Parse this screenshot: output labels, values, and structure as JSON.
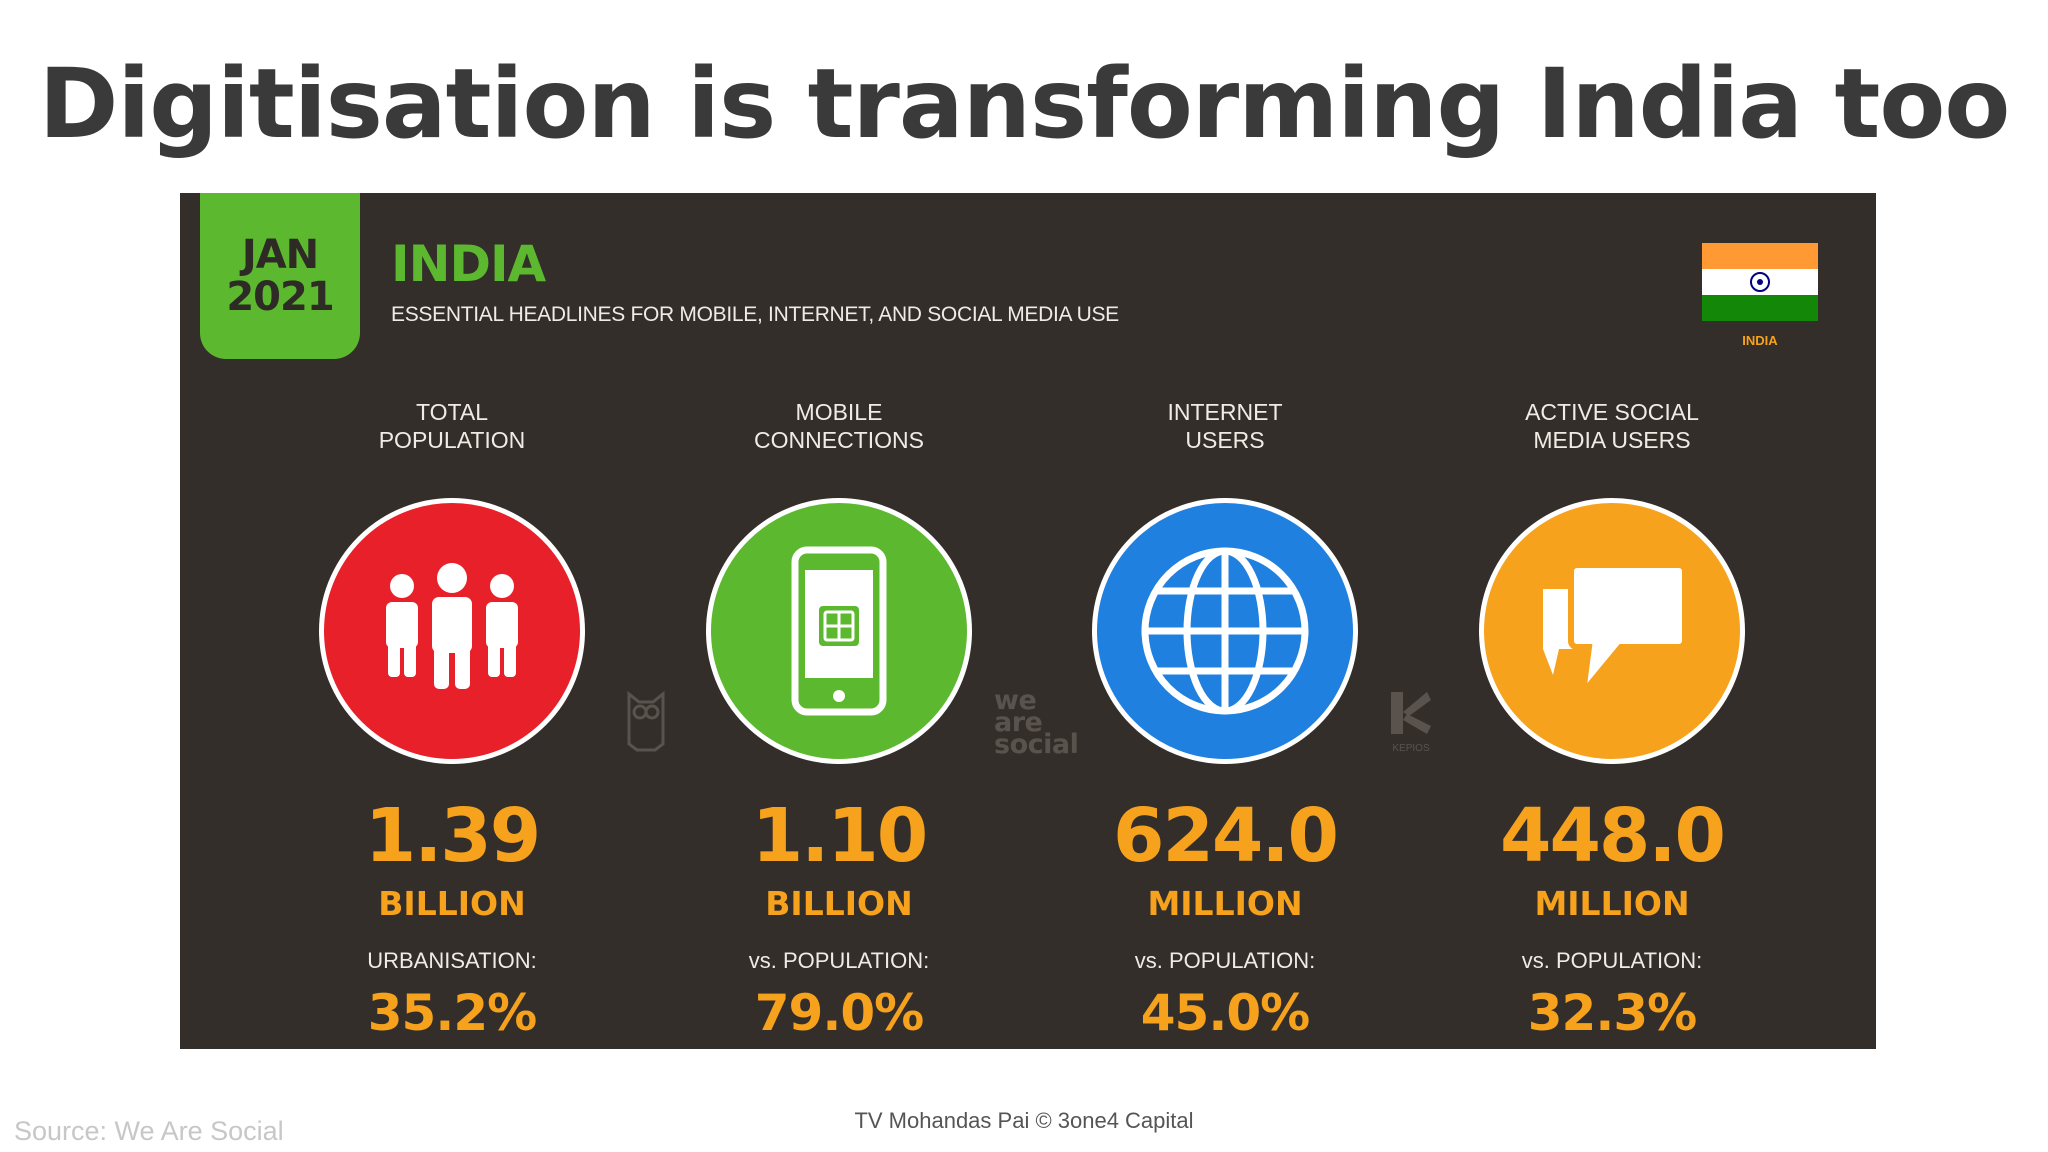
{
  "slide": {
    "title": "Digitisation is transforming India too"
  },
  "panel": {
    "badge_month": "JAN",
    "badge_year": "2021",
    "country": "INDIA",
    "subtitle": "ESSENTIAL HEADLINES FOR MOBILE, INTERNET, AND SOCIAL MEDIA USE",
    "flag_caption": "INDIA",
    "watermarks": [
      "we",
      "are",
      "social",
      "KEPIOS"
    ]
  },
  "stats": [
    {
      "label_line1": "TOTAL",
      "label_line2": "POPULATION",
      "icon": "people-icon",
      "color": "#e8202a",
      "value": "1.39",
      "unit": "BILLION",
      "sub_label": "URBANISATION:",
      "sub_value": "35.2%"
    },
    {
      "label_line1": "MOBILE",
      "label_line2": "CONNECTIONS",
      "icon": "mobile-phone-icon",
      "color": "#5cb82e",
      "value": "1.10",
      "unit": "BILLION",
      "sub_label": "vs. POPULATION:",
      "sub_value": "79.0%"
    },
    {
      "label_line1": "INTERNET",
      "label_line2": "USERS",
      "icon": "globe-icon",
      "color": "#1f80e0",
      "value": "624.0",
      "unit": "MILLION",
      "sub_label": "vs. POPULATION:",
      "sub_value": "45.0%"
    },
    {
      "label_line1": "ACTIVE SOCIAL",
      "label_line2": "MEDIA USERS",
      "icon": "chat-bubbles-icon",
      "color": "#f7a21c",
      "value": "448.0",
      "unit": "MILLION",
      "sub_label": "vs. POPULATION:",
      "sub_value": "32.3%"
    }
  ],
  "footer": {
    "source": "Source: We Are Social",
    "credit": "TV Mohandas Pai © 3one4 Capital"
  }
}
